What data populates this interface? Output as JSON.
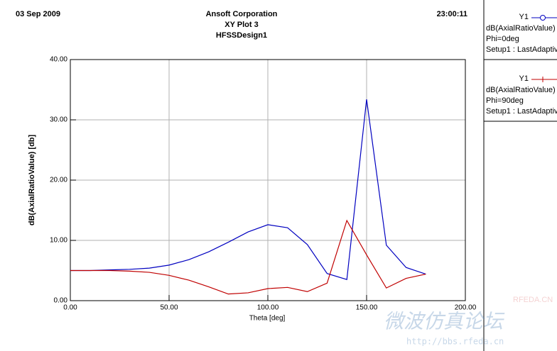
{
  "chart_data": {
    "type": "line",
    "date": "03 Sep 2009",
    "company": "Ansoft Corporation",
    "title": "XY Plot 3",
    "design": "HFSSDesign1",
    "time": "23:00:11",
    "xlabel": "Theta [deg]",
    "ylabel": "dB(AxialRatioValue) [db]",
    "x": [
      0,
      10,
      20,
      30,
      40,
      50,
      60,
      70,
      80,
      90,
      100,
      110,
      120,
      130,
      140,
      150,
      160,
      170,
      180
    ],
    "series": [
      {
        "name": "Y1",
        "expression": "dB(AxialRatioValue)",
        "condition": "Phi=0deg",
        "setup": "Setup1 : LastAdaptiv",
        "color": "#0000c0",
        "marker": "circle",
        "values": [
          5.0,
          5.0,
          5.1,
          5.2,
          5.4,
          5.9,
          6.8,
          8.1,
          9.7,
          11.4,
          12.6,
          12.1,
          9.3,
          4.5,
          3.5,
          33.4,
          9.2,
          5.5,
          4.4
        ]
      },
      {
        "name": "Y1",
        "expression": "dB(AxialRatioValue)",
        "condition": "Phi=90deg",
        "setup": "Setup1 : LastAdaptiv",
        "color": "#c00000",
        "marker": "plus",
        "values": [
          5.0,
          5.0,
          5.0,
          4.9,
          4.7,
          4.2,
          3.4,
          2.3,
          1.1,
          1.3,
          2.0,
          2.2,
          1.5,
          2.9,
          13.3,
          7.6,
          2.1,
          3.7,
          4.4
        ]
      }
    ],
    "xlim": [
      0,
      200
    ],
    "xticks": [
      {
        "value": 0,
        "label": "0.00"
      },
      {
        "value": 50,
        "label": "50.00"
      },
      {
        "value": 100,
        "label": "100.00"
      },
      {
        "value": 150,
        "label": "150.00"
      },
      {
        "value": 200,
        "label": "200.00"
      }
    ],
    "ylim": [
      0,
      40
    ],
    "yticks": [
      {
        "value": 0,
        "label": "0.00"
      },
      {
        "value": 10,
        "label": "10.00"
      },
      {
        "value": 20,
        "label": "20.00"
      },
      {
        "value": 30,
        "label": "30.00"
      },
      {
        "value": 40,
        "label": "40.00"
      }
    ],
    "grid": true
  },
  "watermark": {
    "site": "RFEDA.CN",
    "forum": "微波仿真论坛",
    "url": "http://bbs.rfeda.cn"
  }
}
